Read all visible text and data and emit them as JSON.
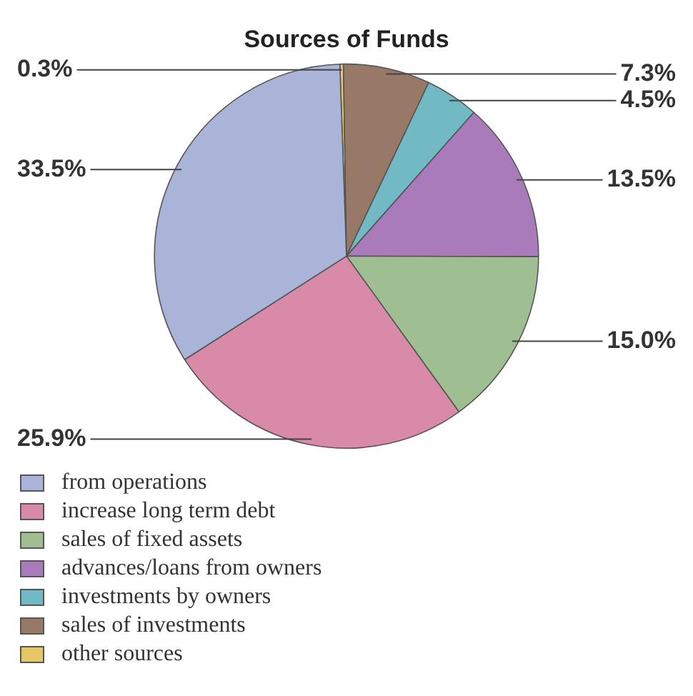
{
  "chart_data": {
    "type": "pie",
    "title": "Sources of Funds",
    "categories": [
      "from operations",
      "increase long term debt",
      "sales of fixed assets",
      "advances/loans from owners",
      "investments by owners",
      "sales of investments",
      "other sources"
    ],
    "values": [
      33.5,
      25.9,
      15.0,
      13.5,
      4.5,
      7.3,
      0.3
    ],
    "colors": [
      "#a9b4d8",
      "#d98aa8",
      "#9fbf92",
      "#a97bbb",
      "#72b9c6",
      "#987866",
      "#e6c766"
    ],
    "value_labels": [
      "33.5%",
      "25.9%",
      "15.0%",
      "13.5%",
      "4.5%",
      "7.3%",
      "0.3%"
    ],
    "legend": "bottom"
  }
}
